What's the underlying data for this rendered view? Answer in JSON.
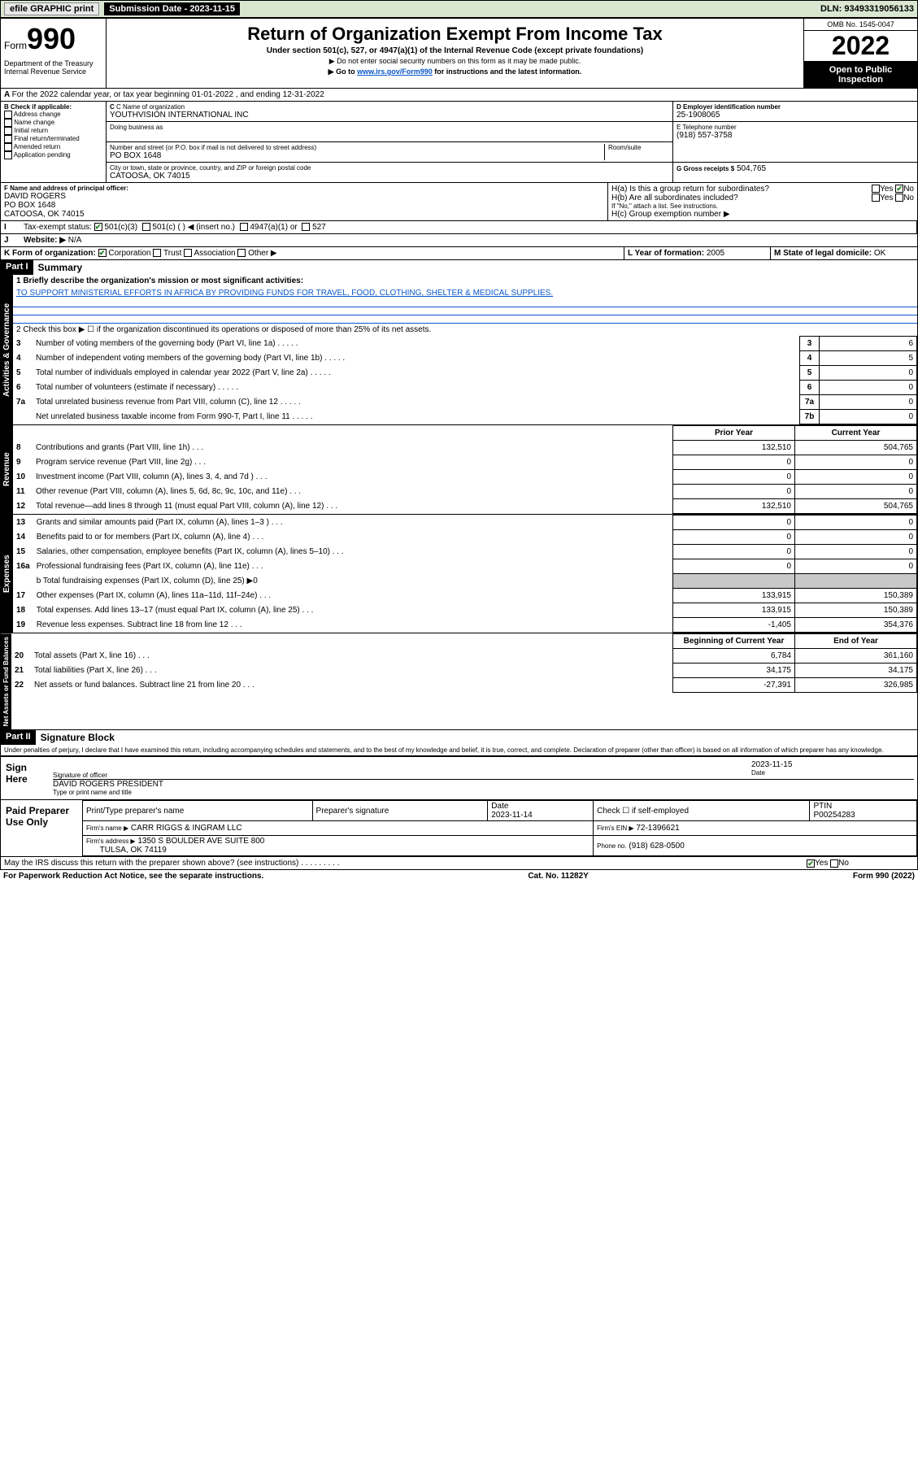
{
  "topbar": {
    "efile": "efile GRAPHIC print",
    "submission_label": "Submission Date - 2023-11-15",
    "dln": "DLN: 93493319056133"
  },
  "header": {
    "form_label": "Form",
    "form_number": "990",
    "dept": "Department of the Treasury",
    "irs": "Internal Revenue Service",
    "title": "Return of Organization Exempt From Income Tax",
    "sub": "Under section 501(c), 527, or 4947(a)(1) of the Internal Revenue Code (except private foundations)",
    "note1": "▶ Do not enter social security numbers on this form as it may be made public.",
    "note2_prefix": "▶ Go to ",
    "note2_link": "www.irs.gov/Form990",
    "note2_suffix": " for instructions and the latest information.",
    "omb": "OMB No. 1545-0047",
    "year": "2022",
    "opi": "Open to Public Inspection"
  },
  "lineA": "For the 2022 calendar year, or tax year beginning 01-01-2022   , and ending 12-31-2022",
  "sectionB": {
    "label": "B Check if applicable:",
    "opts": [
      "Address change",
      "Name change",
      "Initial return",
      "Final return/terminated",
      "Amended return",
      "Application pending"
    ]
  },
  "sectionC": {
    "name_label": "C Name of organization",
    "name": "YOUTHVISION INTERNATIONAL INC",
    "dba_label": "Doing business as",
    "addr_label": "Number and street (or P.O. box if mail is not delivered to street address)",
    "room_label": "Room/suite",
    "addr": "PO BOX 1648",
    "city_label": "City or town, state or province, country, and ZIP or foreign postal code",
    "city": "CATOOSA, OK  74015"
  },
  "sectionD": {
    "label": "D Employer identification number",
    "value": "25-1908065"
  },
  "sectionE": {
    "label": "E Telephone number",
    "value": "(918) 557-3758"
  },
  "sectionG": {
    "label": "G Gross receipts $",
    "value": "504,765"
  },
  "sectionF": {
    "label": "F Name and address of principal officer:",
    "name": "DAVID ROGERS",
    "addr1": "PO BOX 1648",
    "addr2": "CATOOSA, OK  74015"
  },
  "sectionH": {
    "a": "H(a)  Is this a group return for subordinates?",
    "b": "H(b)  Are all subordinates included?",
    "b_note": "If \"No,\" attach a list. See instructions.",
    "c": "H(c)  Group exemption number ▶",
    "yes": "Yes",
    "no": "No"
  },
  "sectionI": {
    "label": "Tax-exempt status:",
    "c3": "501(c)(3)",
    "c": "501(c) (  ) ◀ (insert no.)",
    "a1": "4947(a)(1) or",
    "five27": "527"
  },
  "sectionJ": {
    "label": "Website: ▶",
    "value": "N/A"
  },
  "sectionK": {
    "label": "K Form of organization:",
    "corp": "Corporation",
    "trust": "Trust",
    "assoc": "Association",
    "other": "Other ▶"
  },
  "sectionL": {
    "label": "L Year of formation:",
    "value": "2005"
  },
  "sectionM": {
    "label": "M State of legal domicile:",
    "value": "OK"
  },
  "part1": {
    "hdr": "Part I",
    "title": "Summary",
    "side_label": "Activities & Governance",
    "line1_label": "1  Briefly describe the organization's mission or most significant activities:",
    "line1_text": "TO SUPPORT MINISTERIAL EFFORTS IN AFRICA BY PROVIDING FUNDS FOR TRAVEL, FOOD, CLOTHING, SHELTER & MEDICAL SUPPLIES.",
    "line2": "2  Check this box ▶ ☐  if the organization discontinued its operations or disposed of more than 25% of its net assets.",
    "rows_gov": [
      {
        "n": "3",
        "t": "Number of voting members of the governing body (Part VI, line 1a)",
        "k": "3",
        "v": "6"
      },
      {
        "n": "4",
        "t": "Number of independent voting members of the governing body (Part VI, line 1b)",
        "k": "4",
        "v": "5"
      },
      {
        "n": "5",
        "t": "Total number of individuals employed in calendar year 2022 (Part V, line 2a)",
        "k": "5",
        "v": "0"
      },
      {
        "n": "6",
        "t": "Total number of volunteers (estimate if necessary)",
        "k": "6",
        "v": "0"
      },
      {
        "n": "7a",
        "t": "Total unrelated business revenue from Part VIII, column (C), line 12",
        "k": "7a",
        "v": "0"
      },
      {
        "n": "",
        "t": "Net unrelated business taxable income from Form 990-T, Part I, line 11",
        "k": "7b",
        "v": "0"
      }
    ]
  },
  "revenue": {
    "side": "Revenue",
    "prior_hdr": "Prior Year",
    "curr_hdr": "Current Year",
    "rows": [
      {
        "n": "8",
        "t": "Contributions and grants (Part VIII, line 1h)",
        "p": "132,510",
        "c": "504,765"
      },
      {
        "n": "9",
        "t": "Program service revenue (Part VIII, line 2g)",
        "p": "0",
        "c": "0"
      },
      {
        "n": "10",
        "t": "Investment income (Part VIII, column (A), lines 3, 4, and 7d )",
        "p": "0",
        "c": "0"
      },
      {
        "n": "11",
        "t": "Other revenue (Part VIII, column (A), lines 5, 6d, 8c, 9c, 10c, and 11e)",
        "p": "0",
        "c": "0"
      },
      {
        "n": "12",
        "t": "Total revenue—add lines 8 through 11 (must equal Part VIII, column (A), line 12)",
        "p": "132,510",
        "c": "504,765"
      }
    ]
  },
  "expenses": {
    "side": "Expenses",
    "rows": [
      {
        "n": "13",
        "t": "Grants and similar amounts paid (Part IX, column (A), lines 1–3 )",
        "p": "0",
        "c": "0"
      },
      {
        "n": "14",
        "t": "Benefits paid to or for members (Part IX, column (A), line 4)",
        "p": "0",
        "c": "0"
      },
      {
        "n": "15",
        "t": "Salaries, other compensation, employee benefits (Part IX, column (A), lines 5–10)",
        "p": "0",
        "c": "0"
      },
      {
        "n": "16a",
        "t": "Professional fundraising fees (Part IX, column (A), line 11e)",
        "p": "0",
        "c": "0"
      }
    ],
    "line_b": "b  Total fundraising expenses (Part IX, column (D), line 25) ▶0",
    "rows2": [
      {
        "n": "17",
        "t": "Other expenses (Part IX, column (A), lines 11a–11d, 11f–24e)",
        "p": "133,915",
        "c": "150,389"
      },
      {
        "n": "18",
        "t": "Total expenses. Add lines 13–17 (must equal Part IX, column (A), line 25)",
        "p": "133,915",
        "c": "150,389"
      },
      {
        "n": "19",
        "t": "Revenue less expenses. Subtract line 18 from line 12",
        "p": "-1,405",
        "c": "354,376"
      }
    ]
  },
  "netassets": {
    "side": "Net Assets or Fund Balances",
    "beg_hdr": "Beginning of Current Year",
    "end_hdr": "End of Year",
    "rows": [
      {
        "n": "20",
        "t": "Total assets (Part X, line 16)",
        "p": "6,784",
        "c": "361,160"
      },
      {
        "n": "21",
        "t": "Total liabilities (Part X, line 26)",
        "p": "34,175",
        "c": "34,175"
      },
      {
        "n": "22",
        "t": "Net assets or fund balances. Subtract line 21 from line 20",
        "p": "-27,391",
        "c": "326,985"
      }
    ]
  },
  "part2": {
    "hdr": "Part II",
    "title": "Signature Block",
    "declaration": "Under penalties of perjury, I declare that I have examined this return, including accompanying schedules and statements, and to the best of my knowledge and belief, it is true, correct, and complete. Declaration of preparer (other than officer) is based on all information of which preparer has any knowledge."
  },
  "sign": {
    "here": "Sign Here",
    "sig_label": "Signature of officer",
    "date": "2023-11-15",
    "date_label": "Date",
    "name": "DAVID ROGERS PRESIDENT",
    "name_label": "Type or print name and title"
  },
  "preparer": {
    "label": "Paid Preparer Use Only",
    "col1": "Print/Type preparer's name",
    "col2": "Preparer's signature",
    "col3_label": "Date",
    "col3": "2023-11-14",
    "col4_label": "Check ☐ if self-employed",
    "col5_label": "PTIN",
    "col5": "P00254283",
    "firm_label": "Firm's name   ▶",
    "firm": "CARR RIGGS & INGRAM LLC",
    "ein_label": "Firm's EIN ▶",
    "ein": "72-1396621",
    "addr_label": "Firm's address ▶",
    "addr1": "1350 S BOULDER AVE SUITE 800",
    "addr2": "TULSA, OK  74119",
    "phone_label": "Phone no.",
    "phone": "(918) 628-0500",
    "discuss": "May the IRS discuss this return with the preparer shown above? (see instructions)",
    "yes": "Yes",
    "no": "No"
  },
  "footer": {
    "left": "For Paperwork Reduction Act Notice, see the separate instructions.",
    "mid": "Cat. No. 11282Y",
    "right": "Form 990 (2022)"
  },
  "colors": {
    "topbar_bg": "#d9e7d1",
    "link": "#0a58ca",
    "shade": "#c8c8c8"
  }
}
